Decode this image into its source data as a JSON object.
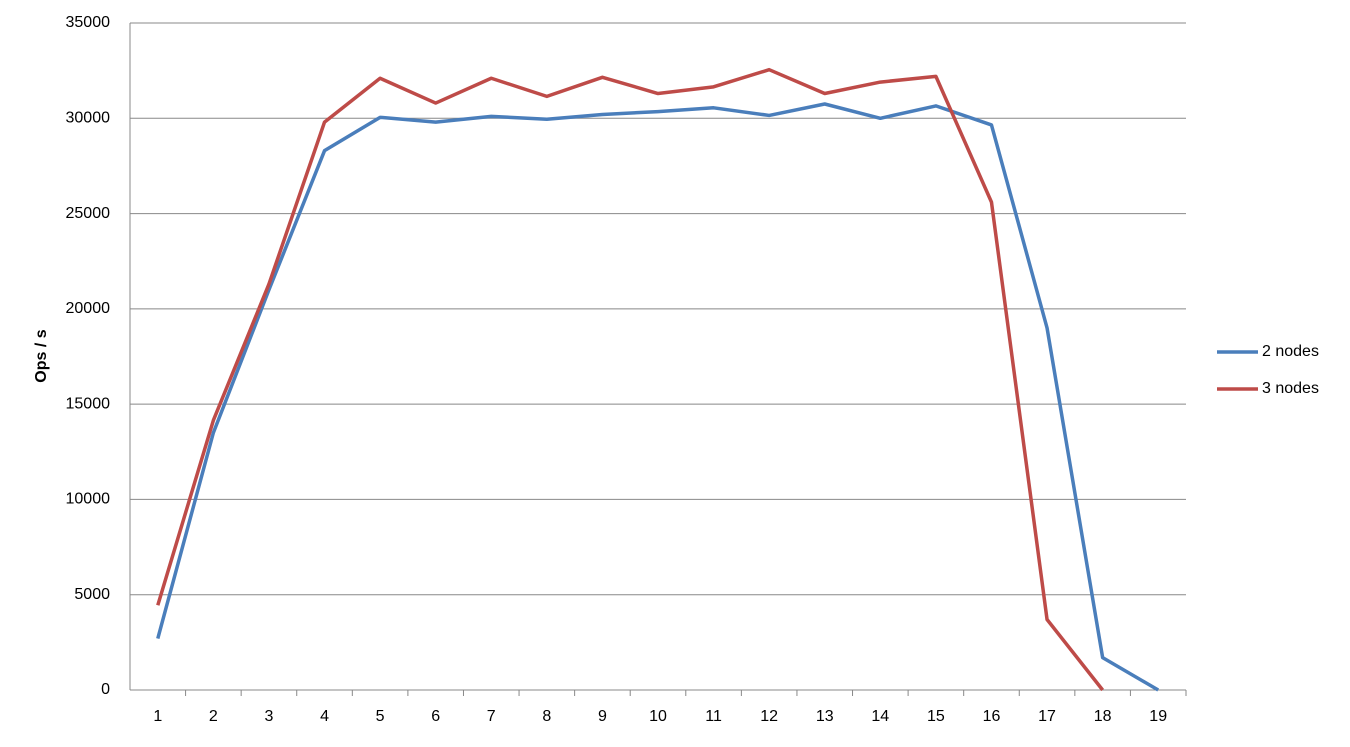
{
  "chart_data": {
    "type": "line",
    "y_label": "Ops / s",
    "categories": [
      "1",
      "2",
      "3",
      "4",
      "5",
      "6",
      "7",
      "8",
      "9",
      "10",
      "11",
      "12",
      "13",
      "14",
      "15",
      "16",
      "17",
      "18",
      "19"
    ],
    "series": [
      {
        "name": "2 nodes",
        "color": "#4a7ebb",
        "values": [
          2700,
          13500,
          21000,
          28300,
          30050,
          29800,
          30100,
          29950,
          30200,
          30350,
          30550,
          30150,
          30750,
          30000,
          30650,
          29650,
          19000,
          1700,
          0
        ]
      },
      {
        "name": "3 nodes",
        "color": "#be4b48",
        "values": [
          4450,
          14150,
          21300,
          29800,
          32100,
          30800,
          32100,
          31150,
          32150,
          31300,
          31650,
          32550,
          31300,
          31900,
          32200,
          25600,
          3700,
          0,
          null
        ]
      }
    ],
    "ylim": [
      0,
      35000
    ],
    "yticks": [
      0,
      5000,
      10000,
      15000,
      20000,
      25000,
      30000,
      35000
    ],
    "grid": true,
    "legend": "right"
  }
}
